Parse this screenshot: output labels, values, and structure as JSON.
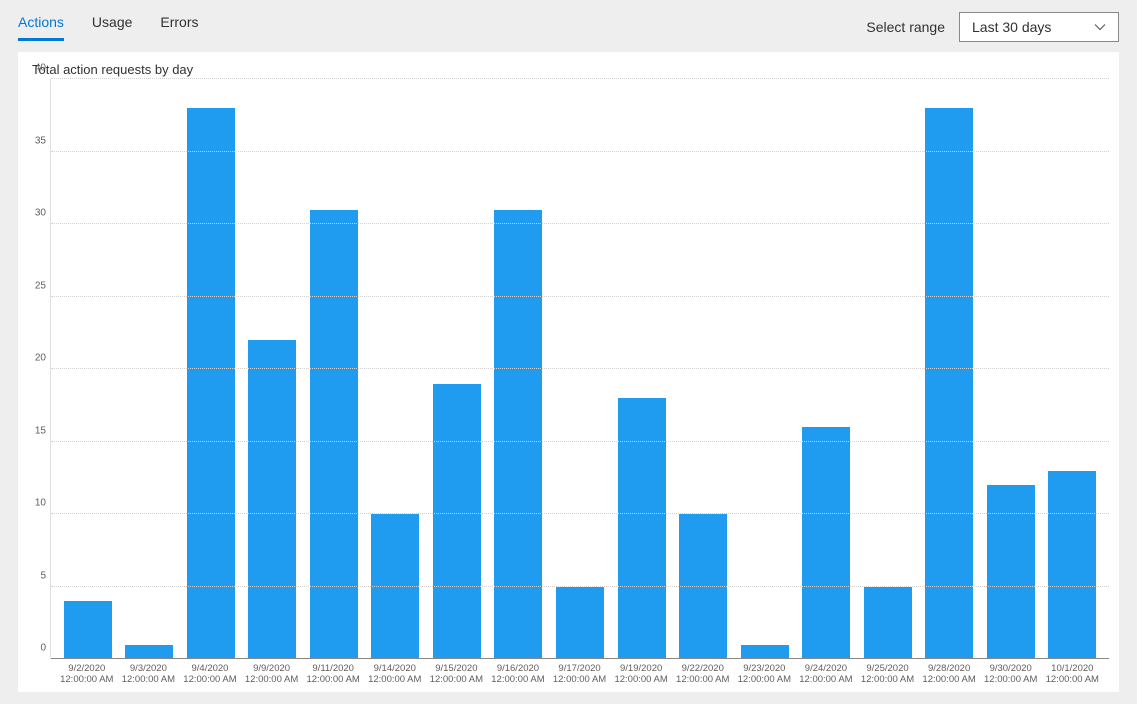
{
  "tabs": [
    {
      "label": "Actions",
      "active": true
    },
    {
      "label": "Usage",
      "active": false
    },
    {
      "label": "Errors",
      "active": false
    }
  ],
  "range": {
    "label": "Select range",
    "selected": "Last 30 days"
  },
  "chart": {
    "title": "Total action requests by day",
    "type": "bar",
    "bar_color": "#1f9cf0",
    "background_color": "#ffffff",
    "grid_color": "#d2d0ce",
    "ylim": [
      0,
      40
    ],
    "ytick_step": 5,
    "yticks": [
      0,
      5,
      10,
      15,
      20,
      25,
      30,
      35,
      40
    ],
    "bar_width": 0.78,
    "title_fontsize": 13,
    "axis_fontsize": 10,
    "categories": [
      {
        "line1": "9/2/2020",
        "line2": "12:00:00 AM",
        "value": 4
      },
      {
        "line1": "9/3/2020",
        "line2": "12:00:00 AM",
        "value": 1
      },
      {
        "line1": "9/4/2020",
        "line2": "12:00:00 AM",
        "value": 38
      },
      {
        "line1": "9/9/2020",
        "line2": "12:00:00 AM",
        "value": 22
      },
      {
        "line1": "9/11/2020",
        "line2": "12:00:00 AM",
        "value": 31
      },
      {
        "line1": "9/14/2020",
        "line2": "12:00:00 AM",
        "value": 10
      },
      {
        "line1": "9/15/2020",
        "line2": "12:00:00 AM",
        "value": 19
      },
      {
        "line1": "9/16/2020",
        "line2": "12:00:00 AM",
        "value": 31
      },
      {
        "line1": "9/17/2020",
        "line2": "12:00:00 AM",
        "value": 5
      },
      {
        "line1": "9/19/2020",
        "line2": "12:00:00 AM",
        "value": 18
      },
      {
        "line1": "9/22/2020",
        "line2": "12:00:00 AM",
        "value": 10
      },
      {
        "line1": "9/23/2020",
        "line2": "12:00:00 AM",
        "value": 1
      },
      {
        "line1": "9/24/2020",
        "line2": "12:00:00 AM",
        "value": 16
      },
      {
        "line1": "9/25/2020",
        "line2": "12:00:00 AM",
        "value": 5
      },
      {
        "line1": "9/28/2020",
        "line2": "12:00:00 AM",
        "value": 38
      },
      {
        "line1": "9/30/2020",
        "line2": "12:00:00 AM",
        "value": 12
      },
      {
        "line1": "10/1/2020",
        "line2": "12:00:00 AM",
        "value": 13
      }
    ]
  }
}
